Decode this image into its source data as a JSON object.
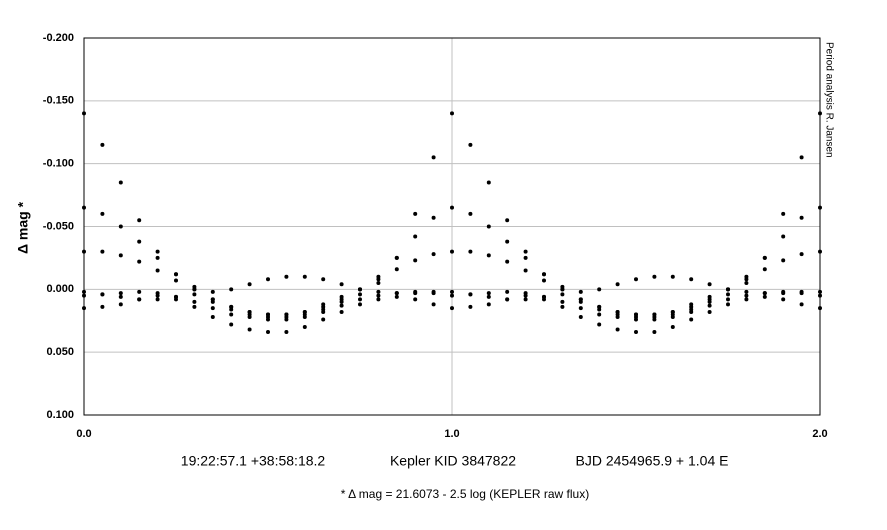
{
  "chart_data": {
    "type": "scatter",
    "y_label": "Δ mag *",
    "side_note": "Period analysis R. Jansen",
    "coordinates": "19:22:57.1 +38:58:18.2",
    "star_id": "Kepler KID 3847822",
    "ephemeris": "BJD 2454965.9 + 1.04 E",
    "footnote": "* Δ mag = 21.6073 - 2.5 log (KEPLER raw flux)",
    "xlim": [
      0,
      2
    ],
    "xticks": [
      {
        "value": 0,
        "label": "0.0"
      },
      {
        "value": 1,
        "label": "1.0"
      },
      {
        "value": 2,
        "label": "2.0"
      }
    ],
    "ylim": [
      0.1,
      -0.2
    ],
    "yticks": [
      {
        "value": -0.2,
        "label": "-0.200"
      },
      {
        "value": -0.15,
        "label": "-0.150"
      },
      {
        "value": -0.1,
        "label": "-0.100"
      },
      {
        "value": -0.05,
        "label": "-0.050"
      },
      {
        "value": 0,
        "label": "0.000"
      },
      {
        "value": 0.05,
        "label": "0.050"
      },
      {
        "value": 0.1,
        "label": "0.100"
      }
    ],
    "grid": true,
    "x": [
      0,
      0.05,
      0.1,
      0.15,
      0.2,
      0.25,
      0.3,
      0.35,
      0.4,
      0.45,
      0.5,
      0.55,
      0.6,
      0.65,
      0.7,
      0.75,
      0.8,
      0.85,
      0.9,
      0.95,
      1.0,
      1.05,
      1.1,
      1.15,
      1.2,
      1.25,
      1.3,
      1.35,
      1.4,
      1.45,
      1.5,
      1.55,
      1.6,
      1.65,
      1.7,
      1.75,
      1.8,
      1.85,
      1.9,
      1.95,
      2.0
    ],
    "series": [
      {
        "color": "#000000",
        "values": [
          -0.14,
          -0.115,
          -0.085,
          -0.055,
          -0.03,
          -0.012,
          0.0,
          0.01,
          0.016,
          0.02,
          0.022,
          0.022,
          0.02,
          0.016,
          0.01,
          0.004,
          -0.005,
          -0.025,
          -0.06,
          -0.105,
          -0.14,
          -0.115,
          -0.085,
          -0.055,
          -0.03,
          -0.012,
          0.0,
          0.01,
          0.016,
          0.02,
          0.022,
          0.022,
          0.02,
          0.016,
          0.01,
          0.004,
          -0.005,
          -0.025,
          -0.06,
          -0.105,
          -0.14
        ]
      },
      {
        "color": "#000000",
        "values": [
          -0.065,
          -0.06,
          -0.05,
          -0.038,
          -0.025,
          -0.012,
          -0.002,
          0.008,
          0.014,
          0.018,
          0.02,
          0.02,
          0.018,
          0.014,
          0.008,
          0.0,
          -0.01,
          -0.025,
          -0.042,
          -0.057,
          -0.065,
          -0.06,
          -0.05,
          -0.038,
          -0.025,
          -0.012,
          -0.002,
          0.008,
          0.014,
          0.018,
          0.02,
          0.02,
          0.018,
          0.014,
          0.008,
          0.0,
          -0.01,
          -0.025,
          -0.042,
          -0.057,
          -0.065
        ]
      },
      {
        "color": "#000000",
        "values": [
          -0.03,
          -0.03,
          -0.027,
          -0.022,
          -0.015,
          -0.007,
          0.0,
          0.008,
          0.014,
          0.018,
          0.02,
          0.02,
          0.018,
          0.012,
          0.006,
          0.0,
          -0.008,
          -0.016,
          -0.023,
          -0.028,
          -0.03,
          -0.03,
          -0.027,
          -0.022,
          -0.015,
          -0.007,
          0.0,
          0.008,
          0.014,
          0.018,
          0.02,
          0.02,
          0.018,
          0.012,
          0.006,
          0.0,
          -0.008,
          -0.016,
          -0.023,
          -0.028,
          -0.03
        ]
      },
      {
        "color": "#000000",
        "values": [
          0.002,
          0.004,
          0.006,
          0.008,
          0.008,
          0.006,
          0.004,
          0.002,
          0.0,
          -0.004,
          -0.008,
          -0.01,
          -0.01,
          -0.008,
          -0.004,
          0.0,
          0.002,
          0.003,
          0.003,
          0.002,
          0.002,
          0.004,
          0.006,
          0.008,
          0.008,
          0.006,
          0.004,
          0.002,
          0.0,
          -0.004,
          -0.008,
          -0.01,
          -0.01,
          -0.008,
          -0.004,
          0.0,
          0.002,
          0.003,
          0.003,
          0.002,
          0.002
        ]
      },
      {
        "color": "#000000",
        "values": [
          0.015,
          0.014,
          0.012,
          0.008,
          0.005,
          0.008,
          0.014,
          0.022,
          0.028,
          0.032,
          0.034,
          0.034,
          0.03,
          0.024,
          0.018,
          0.012,
          0.008,
          0.006,
          0.008,
          0.012,
          0.015,
          0.014,
          0.012,
          0.008,
          0.005,
          0.008,
          0.014,
          0.022,
          0.028,
          0.032,
          0.034,
          0.034,
          0.03,
          0.024,
          0.018,
          0.012,
          0.008,
          0.006,
          0.008,
          0.012,
          0.015
        ]
      },
      {
        "color": "#000000",
        "values": [
          0.005,
          0.004,
          0.003,
          0.002,
          0.003,
          0.006,
          0.01,
          0.015,
          0.02,
          0.022,
          0.024,
          0.024,
          0.022,
          0.018,
          0.013,
          0.008,
          0.005,
          0.003,
          0.002,
          0.003,
          0.005,
          0.004,
          0.003,
          0.002,
          0.003,
          0.006,
          0.01,
          0.015,
          0.02,
          0.022,
          0.024,
          0.024,
          0.022,
          0.018,
          0.013,
          0.008,
          0.005,
          0.003,
          0.002,
          0.003,
          0.005
        ]
      }
    ]
  }
}
